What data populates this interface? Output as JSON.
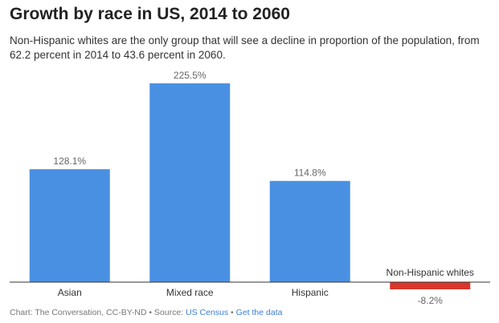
{
  "header": {
    "title": "Growth by race in US, 2014 to 2060",
    "subtitle": "Non-Hispanic whites are the only group that will see a decline in proportion of the population, from 62.2 percent in 2014 to 43.6 percent in 2060."
  },
  "chart_data": {
    "type": "bar",
    "title": "Growth by race in US, 2014 to 2060",
    "categories": [
      "Asian",
      "Mixed race",
      "Hispanic",
      "Non-Hispanic whites"
    ],
    "values": [
      128.1,
      225.5,
      114.8,
      -8.2
    ],
    "value_labels": [
      "128.1%",
      "225.5%",
      "114.8%",
      "-8.2%"
    ],
    "xlabel": "",
    "ylabel": "",
    "ylim": [
      -8.2,
      225.5
    ],
    "grid": false,
    "legend": "none",
    "colors": {
      "positive": "#4a90e2",
      "negative": "#d9362b",
      "axis": "#333333"
    }
  },
  "footer": {
    "credit": "Chart: The Conversation, CC-BY-ND",
    "sep1": " • Source: ",
    "source": "US Census",
    "sep2": " • ",
    "data_link": "Get the data"
  }
}
